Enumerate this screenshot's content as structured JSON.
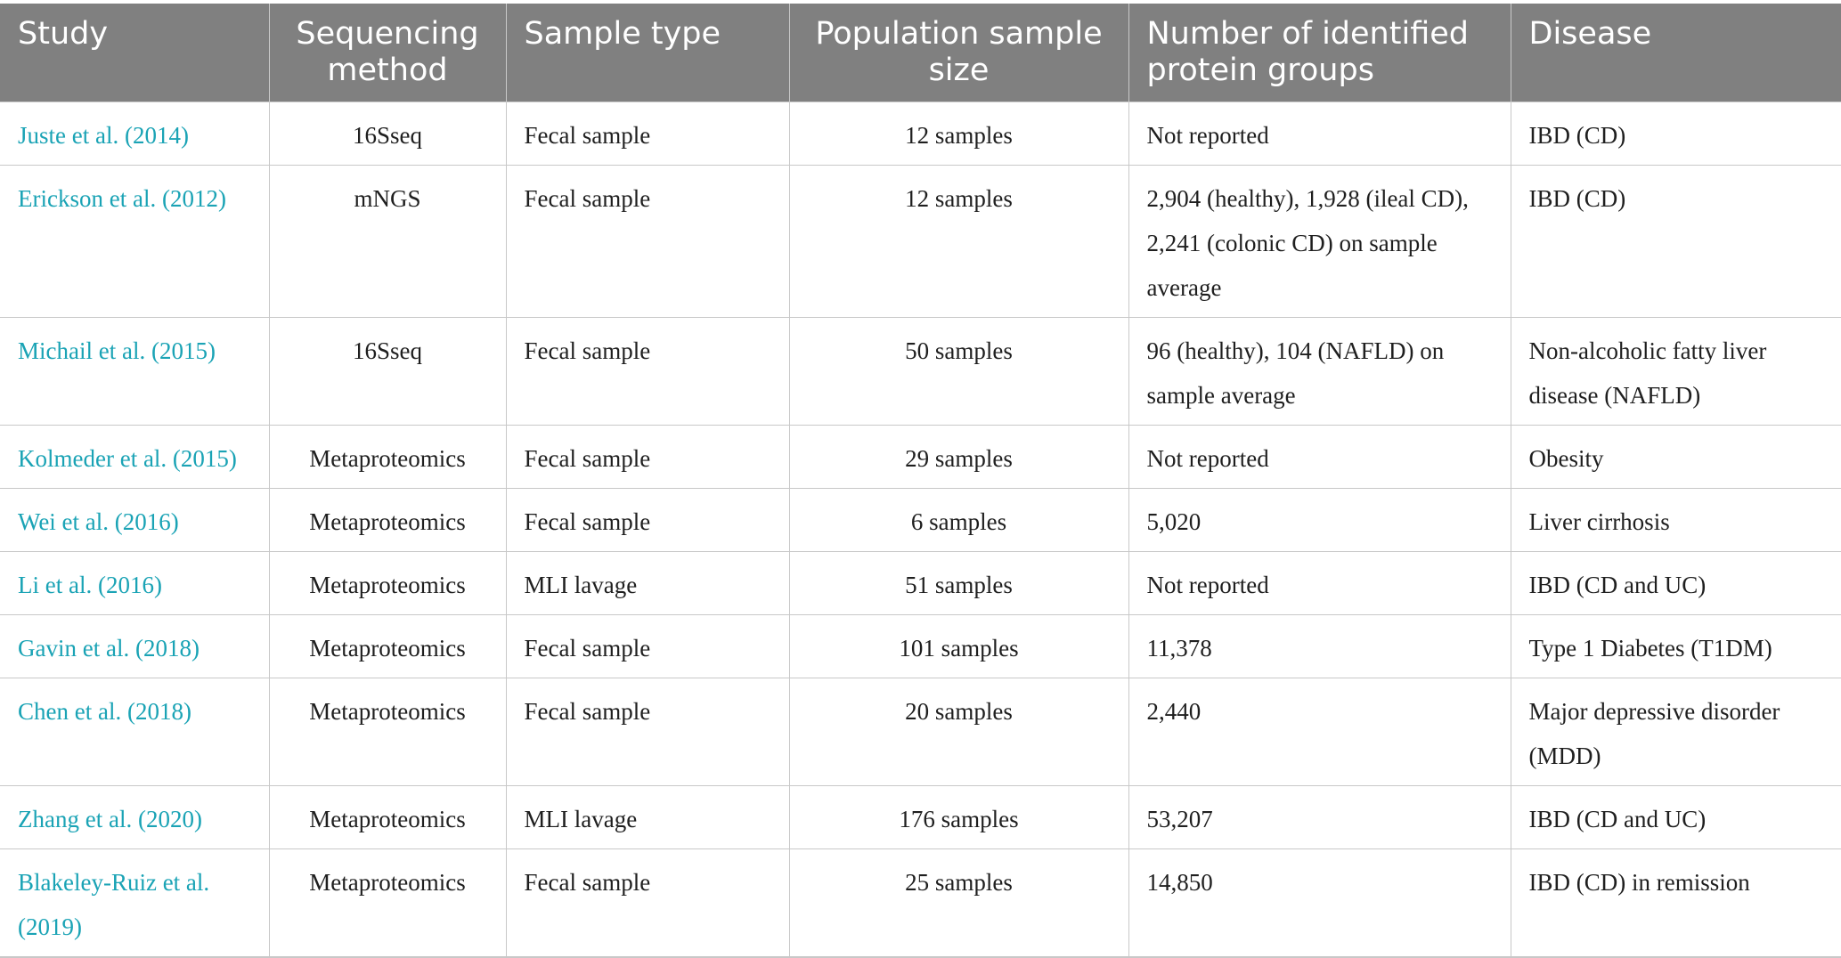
{
  "table": {
    "headers": [
      "Study",
      "Sequencing method",
      "Sample type",
      "Population sample size",
      "Number of identified protein groups",
      "Disease"
    ],
    "rows": [
      {
        "study": "Juste et al. (2014)",
        "method": "16Sseq",
        "sample_type": "Fecal sample",
        "size": "12 samples",
        "proteins": "Not reported",
        "disease": "IBD (CD)"
      },
      {
        "study": "Erickson et al. (2012)",
        "method": "mNGS",
        "sample_type": "Fecal sample",
        "size": "12 samples",
        "proteins": "2,904 (healthy), 1,928 (ileal CD), 2,241 (colonic CD) on sample average",
        "disease": "IBD (CD)"
      },
      {
        "study": "Michail et al. (2015)",
        "method": "16Sseq",
        "sample_type": "Fecal sample",
        "size": "50 samples",
        "proteins": "96 (healthy), 104 (NAFLD) on sample average",
        "disease": "Non-alcoholic fatty liver disease (NAFLD)"
      },
      {
        "study": "Kolmeder et al. (2015)",
        "method": "Metaproteomics",
        "sample_type": "Fecal sample",
        "size": "29 samples",
        "proteins": "Not reported",
        "disease": "Obesity"
      },
      {
        "study": "Wei et al. (2016)",
        "method": "Metaproteomics",
        "sample_type": "Fecal sample",
        "size": "6 samples",
        "proteins": "5,020",
        "disease": "Liver cirrhosis"
      },
      {
        "study": "Li et al. (2016)",
        "method": "Metaproteomics",
        "sample_type": "MLI lavage",
        "size": "51 samples",
        "proteins": "Not reported",
        "disease": "IBD (CD and UC)"
      },
      {
        "study": "Gavin et al. (2018)",
        "method": "Metaproteomics",
        "sample_type": "Fecal sample",
        "size": "101 samples",
        "proteins": "11,378",
        "disease": "Type 1 Diabetes (T1DM)"
      },
      {
        "study": "Chen et al. (2018)",
        "method": "Metaproteomics",
        "sample_type": "Fecal sample",
        "size": "20 samples",
        "proteins": "2,440",
        "disease": "Major depressive disorder (MDD)"
      },
      {
        "study": "Zhang et al. (2020)",
        "method": "Metaproteomics",
        "sample_type": "MLI lavage",
        "size": "176 samples",
        "proteins": "53,207",
        "disease": "IBD (CD and UC)"
      },
      {
        "study": "Blakeley-Ruiz et al. (2019)",
        "method": "Metaproteomics",
        "sample_type": "Fecal sample",
        "size": "25 samples",
        "proteins": "14,850",
        "disease": "IBD (CD) in remission"
      }
    ],
    "colors": {
      "header_bg": "#808080",
      "header_text": "#ffffff",
      "link": "#1aa3b5",
      "border": "#c8c8c8"
    }
  }
}
